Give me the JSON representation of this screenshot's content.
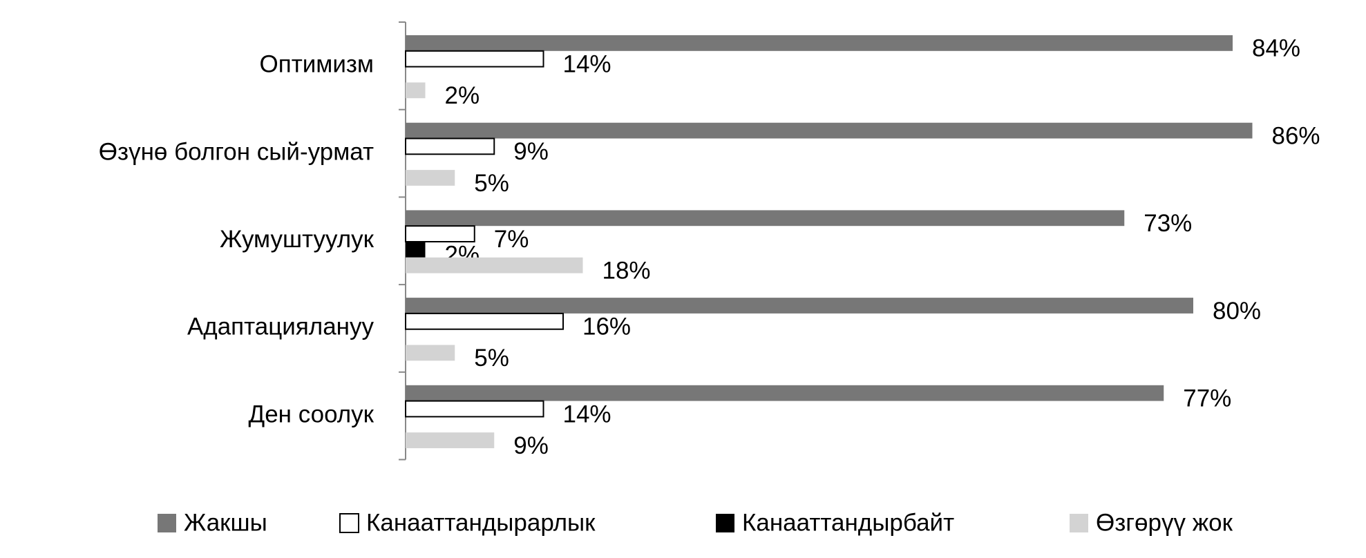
{
  "chart_data": {
    "type": "hbar",
    "categories": [
      "Оптимизм",
      "Өзүнө болгон сый-урмат",
      "Жумуштуулук",
      "Адаптациялануу",
      "Ден соолук"
    ],
    "xlim": [
      0,
      100
    ],
    "legend": "bottom",
    "series": [
      {
        "name": "Жакшы",
        "color": "#777777",
        "values": [
          84,
          86,
          73,
          80,
          77
        ],
        "value_labels": [
          "84%",
          "86%",
          "73%",
          "80%",
          "77%"
        ]
      },
      {
        "name": "Канааттандырарлык",
        "color": "#ffffff",
        "values": [
          14,
          9,
          7,
          16,
          14
        ],
        "value_labels": [
          "14%",
          "9%",
          "7%",
          "16%",
          "14%"
        ]
      },
      {
        "name": "Канааттандырбайт",
        "color": "#000000",
        "values": [
          null,
          null,
          2,
          null,
          null
        ],
        "value_labels": [
          null,
          null,
          "2%",
          null,
          null
        ]
      },
      {
        "name": "Өзгөрүү жок",
        "color": "#d3d3d3",
        "values": [
          2,
          5,
          18,
          5,
          9
        ],
        "value_labels": [
          "2%",
          "5%",
          "18%",
          "5%",
          "9%"
        ]
      }
    ]
  }
}
